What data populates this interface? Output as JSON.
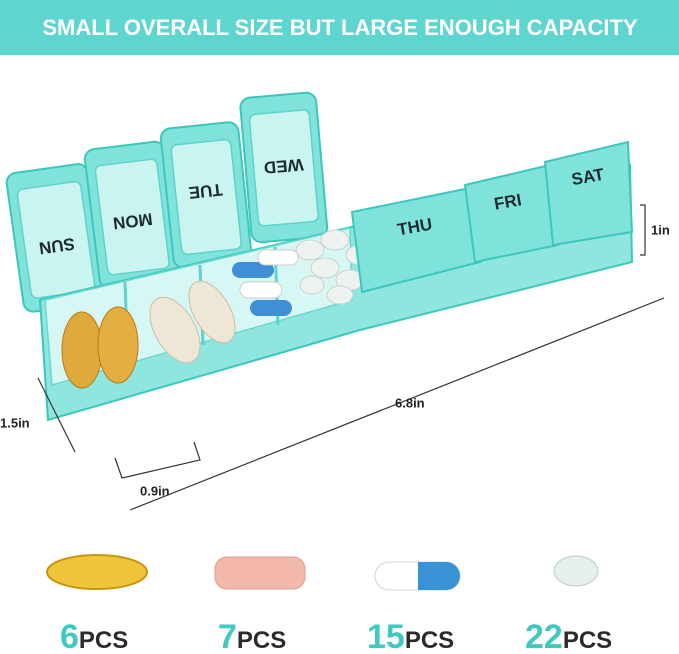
{
  "header": {
    "title": "SMALL OVERALL SIZE BUT LARGE ENOUGH CAPACITY"
  },
  "days": [
    "SUN",
    "MON",
    "TUE",
    "WED",
    "THU",
    "FRI",
    "SAT"
  ],
  "dimensions": {
    "height": "1in",
    "width": "1.5in",
    "length": "6.8in",
    "compartment": "0.9in"
  },
  "capacity": [
    {
      "count": "6",
      "unit": "PCS"
    },
    {
      "count": "7",
      "unit": "PCS"
    },
    {
      "count": "15",
      "unit": "PCS"
    },
    {
      "count": "22",
      "unit": "PCS"
    }
  ]
}
